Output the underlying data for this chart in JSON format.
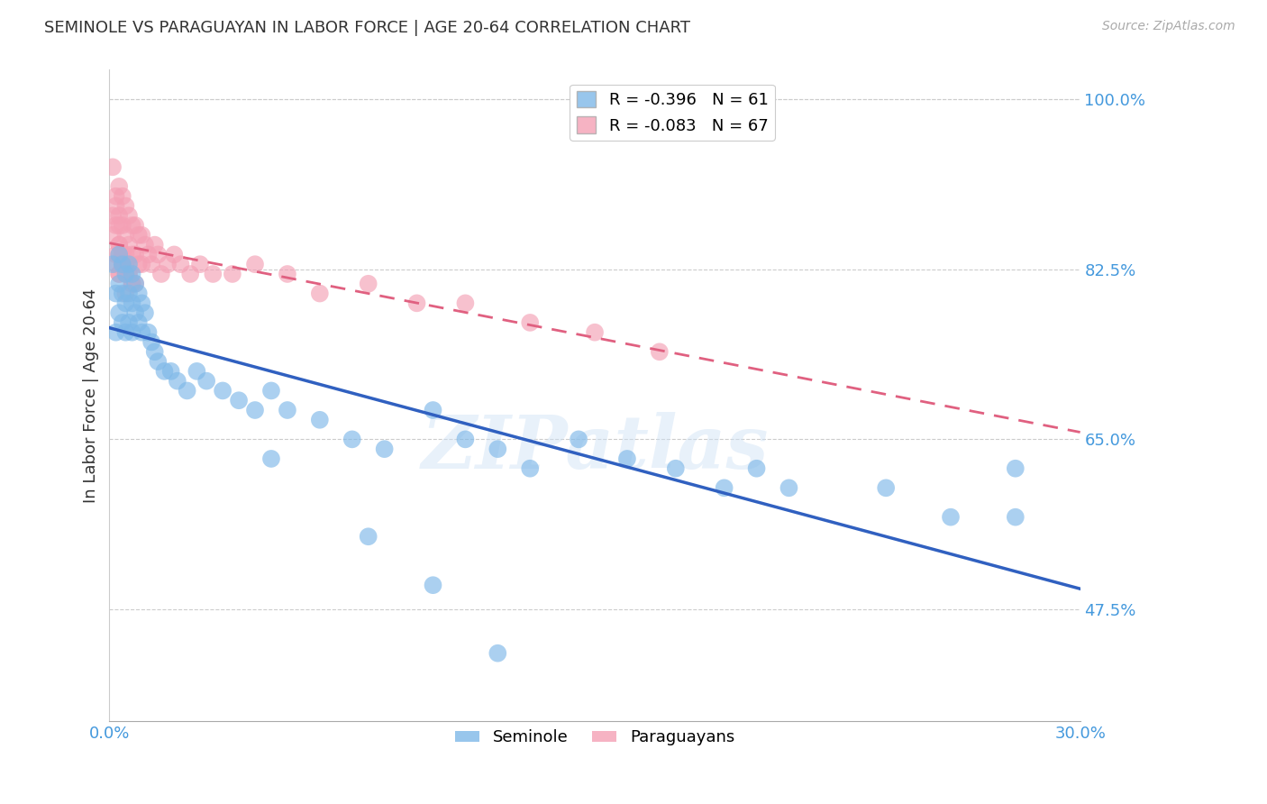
{
  "title": "SEMINOLE VS PARAGUAYAN IN LABOR FORCE | AGE 20-64 CORRELATION CHART",
  "source": "Source: ZipAtlas.com",
  "ylabel": "In Labor Force | Age 20-64",
  "xmin": 0.0,
  "xmax": 0.3,
  "ymin": 0.36,
  "ymax": 1.03,
  "yticks": [
    0.475,
    0.65,
    0.825,
    1.0
  ],
  "ytick_labels": [
    "47.5%",
    "65.0%",
    "82.5%",
    "100.0%"
  ],
  "xtick_labels_bottom": [
    "0.0%",
    "30.0%"
  ],
  "seminole_R": -0.396,
  "seminole_N": 61,
  "paraguayan_R": -0.083,
  "paraguayan_N": 67,
  "seminole_color": "#7eb8e8",
  "paraguayan_color": "#f4a0b5",
  "seminole_line_color": "#3060c0",
  "paraguayan_line_color": "#e06080",
  "watermark": "ZIPatlas",
  "background_color": "#ffffff",
  "grid_color": "#cccccc",
  "tick_label_color": "#4499dd",
  "seminole_x": [
    0.001,
    0.002,
    0.002,
    0.003,
    0.003,
    0.003,
    0.004,
    0.004,
    0.004,
    0.005,
    0.005,
    0.005,
    0.006,
    0.006,
    0.006,
    0.007,
    0.007,
    0.007,
    0.008,
    0.008,
    0.009,
    0.009,
    0.01,
    0.01,
    0.011,
    0.012,
    0.013,
    0.014,
    0.015,
    0.017,
    0.019,
    0.021,
    0.024,
    0.027,
    0.03,
    0.035,
    0.04,
    0.045,
    0.05,
    0.055,
    0.065,
    0.075,
    0.085,
    0.1,
    0.11,
    0.12,
    0.13,
    0.145,
    0.16,
    0.175,
    0.19,
    0.21,
    0.24,
    0.26,
    0.28,
    0.1,
    0.05,
    0.08,
    0.12,
    0.2,
    0.28
  ],
  "seminole_y": [
    0.83,
    0.8,
    0.76,
    0.84,
    0.81,
    0.78,
    0.83,
    0.8,
    0.77,
    0.82,
    0.79,
    0.76,
    0.83,
    0.8,
    0.77,
    0.82,
    0.79,
    0.76,
    0.81,
    0.78,
    0.8,
    0.77,
    0.79,
    0.76,
    0.78,
    0.76,
    0.75,
    0.74,
    0.73,
    0.72,
    0.72,
    0.71,
    0.7,
    0.72,
    0.71,
    0.7,
    0.69,
    0.68,
    0.7,
    0.68,
    0.67,
    0.65,
    0.64,
    0.68,
    0.65,
    0.64,
    0.62,
    0.65,
    0.63,
    0.62,
    0.6,
    0.6,
    0.6,
    0.57,
    0.57,
    0.5,
    0.63,
    0.55,
    0.43,
    0.62,
    0.62
  ],
  "paraguayan_x": [
    0.001,
    0.001,
    0.002,
    0.002,
    0.002,
    0.003,
    0.003,
    0.003,
    0.003,
    0.004,
    0.004,
    0.004,
    0.005,
    0.005,
    0.005,
    0.005,
    0.006,
    0.006,
    0.006,
    0.007,
    0.007,
    0.007,
    0.008,
    0.008,
    0.008,
    0.009,
    0.009,
    0.01,
    0.01,
    0.011,
    0.012,
    0.013,
    0.014,
    0.015,
    0.016,
    0.018,
    0.02,
    0.022,
    0.025,
    0.028,
    0.032,
    0.038,
    0.045,
    0.055,
    0.065,
    0.08,
    0.095,
    0.11,
    0.13,
    0.15,
    0.17,
    0.002,
    0.003,
    0.004,
    0.005,
    0.003,
    0.004,
    0.005,
    0.006,
    0.007,
    0.001,
    0.002,
    0.003,
    0.003,
    0.004,
    0.004,
    0.005
  ],
  "paraguayan_y": [
    0.88,
    0.86,
    0.9,
    0.87,
    0.84,
    0.91,
    0.88,
    0.85,
    0.82,
    0.9,
    0.87,
    0.84,
    0.89,
    0.86,
    0.83,
    0.8,
    0.88,
    0.85,
    0.82,
    0.87,
    0.84,
    0.81,
    0.87,
    0.84,
    0.81,
    0.86,
    0.83,
    0.86,
    0.83,
    0.85,
    0.84,
    0.83,
    0.85,
    0.84,
    0.82,
    0.83,
    0.84,
    0.83,
    0.82,
    0.83,
    0.82,
    0.82,
    0.83,
    0.82,
    0.8,
    0.81,
    0.79,
    0.79,
    0.77,
    0.76,
    0.74,
    0.83,
    0.84,
    0.83,
    0.84,
    0.82,
    0.83,
    0.83,
    0.82,
    0.81,
    0.93,
    0.89,
    0.87,
    0.85,
    0.84,
    0.83,
    0.82
  ]
}
